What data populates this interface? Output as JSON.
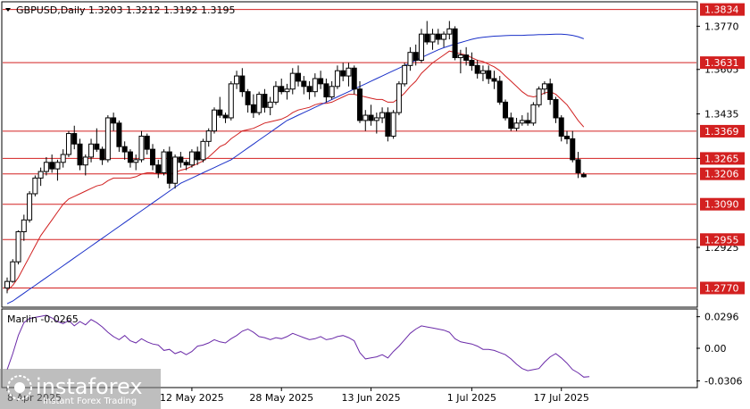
{
  "chart_data": {
    "type": "candlestick",
    "title": "GBPUSD,Daily  1.3203  1.3212  1.3192  1.3195",
    "symbol_label": "GBPUSD,Daily",
    "ohlc_header": [
      "1.3203",
      "1.3212",
      "1.3192",
      "1.3195"
    ],
    "price_axis": {
      "range": [
        1.27,
        1.386
      ],
      "ticks": [
        "1.3770",
        "1.3605",
        "1.3435",
        "1.3265",
        "1.2925"
      ]
    },
    "levels": [
      {
        "value": 1.3834,
        "label": "1.3834",
        "color": "#d32020"
      },
      {
        "value": 1.3631,
        "label": "1.3631",
        "color": "#d32020"
      },
      {
        "value": 1.3369,
        "label": "1.3369",
        "color": "#d32020"
      },
      {
        "value": 1.3265,
        "label": "1.3265",
        "color": "#d32020"
      },
      {
        "value": 1.3206,
        "label": "1.3206",
        "color": "#d32020"
      },
      {
        "value": 1.309,
        "label": "1.3090",
        "color": "#d32020"
      },
      {
        "value": 1.2955,
        "label": "1.2955",
        "color": "#d32020"
      },
      {
        "value": 1.277,
        "label": "1.2770",
        "color": "#d32020"
      }
    ],
    "x_labels": [
      "8 Apr 2025",
      "12 May 2025",
      "28 May 2025",
      "13 Jun 2025",
      "1 Jul 2025",
      "17 Jul 2025"
    ],
    "x_label_index": [
      0,
      33,
      49,
      65,
      83,
      99
    ],
    "candles": [
      [
        1.277,
        1.281,
        1.275,
        1.2795
      ],
      [
        1.2795,
        1.288,
        1.279,
        1.287
      ],
      [
        1.287,
        1.299,
        1.286,
        1.2985
      ],
      [
        1.2985,
        1.305,
        1.295,
        1.303
      ],
      [
        1.303,
        1.314,
        1.302,
        1.313
      ],
      [
        1.313,
        1.32,
        1.312,
        1.319
      ],
      [
        1.319,
        1.323,
        1.316,
        1.3215
      ],
      [
        1.3215,
        1.327,
        1.32,
        1.325
      ],
      [
        1.325,
        1.328,
        1.321,
        1.3225
      ],
      [
        1.3225,
        1.326,
        1.318,
        1.325
      ],
      [
        1.325,
        1.33,
        1.323,
        1.328
      ],
      [
        1.328,
        1.337,
        1.327,
        1.336
      ],
      [
        1.336,
        1.339,
        1.33,
        1.332
      ],
      [
        1.332,
        1.334,
        1.322,
        1.324
      ],
      [
        1.324,
        1.328,
        1.32,
        1.327
      ],
      [
        1.327,
        1.334,
        1.325,
        1.332
      ],
      [
        1.332,
        1.338,
        1.329,
        1.33
      ],
      [
        1.33,
        1.331,
        1.324,
        1.326
      ],
      [
        1.326,
        1.343,
        1.325,
        1.342
      ],
      [
        1.342,
        1.344,
        1.337,
        1.34
      ],
      [
        1.34,
        1.341,
        1.329,
        1.331
      ],
      [
        1.331,
        1.333,
        1.326,
        1.329
      ],
      [
        1.329,
        1.33,
        1.323,
        1.325
      ],
      [
        1.325,
        1.328,
        1.322,
        1.326
      ],
      [
        1.326,
        1.337,
        1.325,
        1.335
      ],
      [
        1.335,
        1.336,
        1.328,
        1.33
      ],
      [
        1.33,
        1.332,
        1.322,
        1.324
      ],
      [
        1.324,
        1.326,
        1.319,
        1.321
      ],
      [
        1.321,
        1.33,
        1.32,
        1.329
      ],
      [
        1.329,
        1.331,
        1.315,
        1.317
      ],
      [
        1.317,
        1.328,
        1.315,
        1.327
      ],
      [
        1.327,
        1.329,
        1.323,
        1.325
      ],
      [
        1.325,
        1.326,
        1.322,
        1.324
      ],
      [
        1.324,
        1.33,
        1.323,
        1.329
      ],
      [
        1.329,
        1.331,
        1.324,
        1.326
      ],
      [
        1.326,
        1.334,
        1.325,
        1.333
      ],
      [
        1.333,
        1.338,
        1.331,
        1.337
      ],
      [
        1.337,
        1.346,
        1.336,
        1.345
      ],
      [
        1.345,
        1.35,
        1.342,
        1.343
      ],
      [
        1.343,
        1.344,
        1.34,
        1.342
      ],
      [
        1.342,
        1.356,
        1.341,
        1.355
      ],
      [
        1.355,
        1.36,
        1.353,
        1.358
      ],
      [
        1.358,
        1.361,
        1.35,
        1.352
      ],
      [
        1.352,
        1.353,
        1.344,
        1.347
      ],
      [
        1.347,
        1.351,
        1.342,
        1.344
      ],
      [
        1.344,
        1.352,
        1.343,
        1.351
      ],
      [
        1.351,
        1.353,
        1.344,
        1.346
      ],
      [
        1.346,
        1.35,
        1.343,
        1.348
      ],
      [
        1.348,
        1.356,
        1.347,
        1.354
      ],
      [
        1.354,
        1.357,
        1.351,
        1.352
      ],
      [
        1.352,
        1.355,
        1.349,
        1.353
      ],
      [
        1.353,
        1.361,
        1.351,
        1.359
      ],
      [
        1.359,
        1.362,
        1.354,
        1.356
      ],
      [
        1.356,
        1.358,
        1.351,
        1.354
      ],
      [
        1.354,
        1.356,
        1.349,
        1.352
      ],
      [
        1.352,
        1.359,
        1.35,
        1.357
      ],
      [
        1.357,
        1.36,
        1.353,
        1.355
      ],
      [
        1.355,
        1.357,
        1.348,
        1.35
      ],
      [
        1.35,
        1.356,
        1.349,
        1.354
      ],
      [
        1.354,
        1.362,
        1.353,
        1.36
      ],
      [
        1.36,
        1.363,
        1.356,
        1.358
      ],
      [
        1.358,
        1.363,
        1.354,
        1.361
      ],
      [
        1.361,
        1.362,
        1.351,
        1.353
      ],
      [
        1.353,
        1.356,
        1.34,
        1.341
      ],
      [
        1.341,
        1.345,
        1.337,
        1.343
      ],
      [
        1.343,
        1.347,
        1.339,
        1.341
      ],
      [
        1.341,
        1.344,
        1.336,
        1.342
      ],
      [
        1.342,
        1.346,
        1.34,
        1.344
      ],
      [
        1.344,
        1.346,
        1.333,
        1.335
      ],
      [
        1.335,
        1.345,
        1.334,
        1.344
      ],
      [
        1.344,
        1.356,
        1.343,
        1.355
      ],
      [
        1.355,
        1.363,
        1.354,
        1.362
      ],
      [
        1.362,
        1.369,
        1.36,
        1.367
      ],
      [
        1.367,
        1.37,
        1.362,
        1.364
      ],
      [
        1.364,
        1.376,
        1.363,
        1.374
      ],
      [
        1.374,
        1.379,
        1.37,
        1.371
      ],
      [
        1.371,
        1.376,
        1.368,
        1.374
      ],
      [
        1.374,
        1.376,
        1.37,
        1.372
      ],
      [
        1.372,
        1.375,
        1.369,
        1.374
      ],
      [
        1.374,
        1.379,
        1.372,
        1.376
      ],
      [
        1.376,
        1.377,
        1.364,
        1.365
      ],
      [
        1.365,
        1.368,
        1.359,
        1.366
      ],
      [
        1.366,
        1.369,
        1.362,
        1.364
      ],
      [
        1.364,
        1.367,
        1.36,
        1.362
      ],
      [
        1.362,
        1.364,
        1.357,
        1.359
      ],
      [
        1.359,
        1.362,
        1.356,
        1.36
      ],
      [
        1.36,
        1.362,
        1.355,
        1.357
      ],
      [
        1.357,
        1.36,
        1.353,
        1.356
      ],
      [
        1.356,
        1.358,
        1.347,
        1.348
      ],
      [
        1.348,
        1.349,
        1.341,
        1.342
      ],
      [
        1.342,
        1.344,
        1.337,
        1.338
      ],
      [
        1.338,
        1.342,
        1.337,
        1.34
      ],
      [
        1.34,
        1.343,
        1.339,
        1.341
      ],
      [
        1.341,
        1.344,
        1.339,
        1.34
      ],
      [
        1.34,
        1.348,
        1.339,
        1.347
      ],
      [
        1.347,
        1.354,
        1.346,
        1.353
      ],
      [
        1.353,
        1.356,
        1.351,
        1.355
      ],
      [
        1.355,
        1.357,
        1.347,
        1.349
      ],
      [
        1.349,
        1.35,
        1.34,
        1.342
      ],
      [
        1.342,
        1.343,
        1.333,
        1.335
      ],
      [
        1.335,
        1.337,
        1.332,
        1.334
      ],
      [
        1.334,
        1.337,
        1.325,
        1.326
      ],
      [
        1.326,
        1.329,
        1.319,
        1.321
      ],
      [
        1.3203,
        1.3212,
        1.3192,
        1.3195
      ]
    ],
    "series": [
      {
        "name": "",
        "color": "#d02020",
        "values": [
          1.276,
          1.278,
          1.281,
          1.285,
          1.289,
          1.293,
          1.297,
          1.3,
          1.303,
          1.306,
          1.309,
          1.311,
          1.312,
          1.313,
          1.314,
          1.315,
          1.316,
          1.3165,
          1.318,
          1.319,
          1.319,
          1.319,
          1.319,
          1.3195,
          1.3205,
          1.321,
          1.321,
          1.3205,
          1.321,
          1.3205,
          1.321,
          1.322,
          1.3225,
          1.3235,
          1.3245,
          1.3255,
          1.327,
          1.329,
          1.331,
          1.332,
          1.334,
          1.3355,
          1.337,
          1.3375,
          1.338,
          1.339,
          1.34,
          1.3405,
          1.341,
          1.3415,
          1.3425,
          1.344,
          1.345,
          1.3455,
          1.346,
          1.347,
          1.3475,
          1.3475,
          1.348,
          1.349,
          1.35,
          1.351,
          1.351,
          1.3505,
          1.35,
          1.3495,
          1.349,
          1.349,
          1.348,
          1.348,
          1.3495,
          1.3515,
          1.354,
          1.356,
          1.359,
          1.361,
          1.363,
          1.3645,
          1.366,
          1.3675,
          1.367,
          1.3665,
          1.366,
          1.365,
          1.364,
          1.3635,
          1.3625,
          1.3615,
          1.36,
          1.358,
          1.356,
          1.354,
          1.352,
          1.3505,
          1.35,
          1.3505,
          1.3515,
          1.352,
          1.351,
          1.349,
          1.347,
          1.344,
          1.341,
          1.3385
        ]
      },
      {
        "name": "",
        "color": "#1a30c8",
        "values": [
          1.271,
          1.272,
          1.2735,
          1.275,
          1.2765,
          1.278,
          1.2795,
          1.281,
          1.2825,
          1.284,
          1.2855,
          1.287,
          1.2885,
          1.29,
          1.2915,
          1.293,
          1.2945,
          1.296,
          1.2975,
          1.299,
          1.3005,
          1.302,
          1.3035,
          1.305,
          1.3065,
          1.308,
          1.3095,
          1.311,
          1.3125,
          1.314,
          1.3155,
          1.317,
          1.318,
          1.319,
          1.32,
          1.321,
          1.322,
          1.323,
          1.324,
          1.325,
          1.326,
          1.3275,
          1.329,
          1.3305,
          1.332,
          1.3335,
          1.335,
          1.3365,
          1.338,
          1.3395,
          1.341,
          1.342,
          1.343,
          1.344,
          1.345,
          1.346,
          1.347,
          1.348,
          1.349,
          1.35,
          1.351,
          1.352,
          1.353,
          1.354,
          1.355,
          1.356,
          1.357,
          1.358,
          1.359,
          1.36,
          1.361,
          1.362,
          1.363,
          1.364,
          1.365,
          1.366,
          1.367,
          1.368,
          1.3688,
          1.3695,
          1.3702,
          1.3708,
          1.3714,
          1.372,
          1.3725,
          1.3728,
          1.373,
          1.3732,
          1.3733,
          1.3734,
          1.3735,
          1.3735,
          1.3735,
          1.3736,
          1.3737,
          1.3738,
          1.3738,
          1.3739,
          1.374,
          1.374,
          1.3738,
          1.3735,
          1.373,
          1.3722
        ]
      }
    ],
    "indicator": {
      "name": "Marlin",
      "value_label": "Marlin -0.0265",
      "ticks": [
        "0.0296",
        "0.00",
        "-0.0306"
      ],
      "range": [
        -0.036,
        0.036
      ],
      "color": "#6a2aa8",
      "values": [
        -0.02,
        -0.005,
        0.012,
        0.024,
        0.028,
        0.029,
        0.03,
        0.031,
        0.0285,
        0.025,
        0.023,
        0.026,
        0.021,
        0.025,
        0.022,
        0.027,
        0.024,
        0.02,
        0.015,
        0.011,
        0.008,
        0.012,
        0.007,
        0.005,
        0.009,
        0.006,
        0.004,
        0.003,
        -0.002,
        -0.001,
        -0.005,
        -0.003,
        -0.006,
        -0.003,
        0.002,
        0.003,
        0.005,
        0.008,
        0.006,
        0.005,
        0.009,
        0.012,
        0.016,
        0.018,
        0.015,
        0.011,
        0.01,
        0.008,
        0.01,
        0.009,
        0.011,
        0.014,
        0.012,
        0.01,
        0.008,
        0.009,
        0.011,
        0.008,
        0.009,
        0.011,
        0.012,
        0.01,
        0.007,
        -0.004,
        -0.01,
        -0.009,
        -0.008,
        -0.006,
        -0.009,
        -0.003,
        0.002,
        0.008,
        0.014,
        0.018,
        0.021,
        0.02,
        0.019,
        0.018,
        0.017,
        0.015,
        0.009,
        0.006,
        0.005,
        0.004,
        0.002,
        -0.001,
        -0.001,
        -0.002,
        -0.004,
        -0.006,
        -0.01,
        -0.015,
        -0.019,
        -0.021,
        -0.02,
        -0.019,
        -0.013,
        -0.008,
        -0.005,
        -0.009,
        -0.014,
        -0.02,
        -0.023,
        -0.027,
        -0.0265
      ]
    }
  },
  "colors": {
    "bull": "#ffffff",
    "bear": "#000000",
    "wick": "#000000",
    "grid": "#c8c8c8",
    "axis": "#000000",
    "level_label_bg": "#d32020"
  },
  "watermark": {
    "brand": "instaforex",
    "tagline": "Instant Forex Trading"
  }
}
